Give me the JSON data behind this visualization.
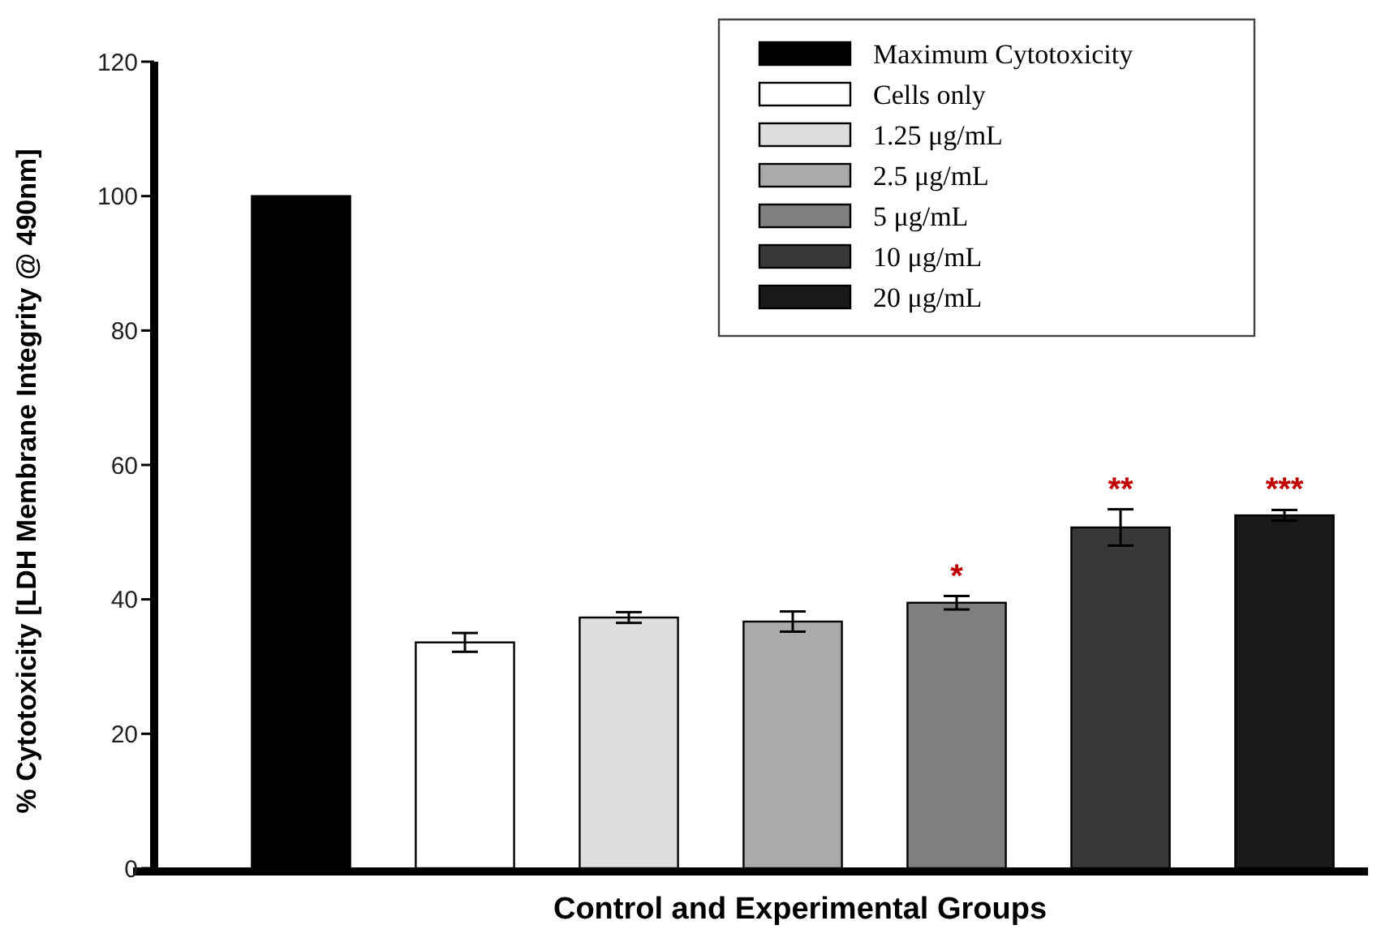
{
  "chart_data": {
    "type": "bar",
    "xlabel": "Control and Experimental Groups",
    "ylabel": "% Cytotoxicity [LDH Membrane Integrity @ 490nm]",
    "categories": [
      null,
      null,
      null,
      null,
      null,
      null,
      null
    ],
    "series": [
      {
        "name": "Maximum Cytotoxicity",
        "color": "#000000",
        "values": [
          100,
          null,
          null,
          null,
          null,
          null,
          null
        ]
      },
      {
        "name": "Cells only",
        "color": "#ffffff",
        "values": [
          null,
          33.6,
          null,
          null,
          null,
          null,
          null
        ],
        "errors": [
          null,
          1.4,
          null,
          null,
          null,
          null,
          null
        ]
      },
      {
        "name": "1.25 μg/mL",
        "color": "#dddddd",
        "values": [
          null,
          null,
          37.3,
          null,
          null,
          null,
          null
        ],
        "errors": [
          null,
          null,
          0.8,
          null,
          null,
          null,
          null
        ]
      },
      {
        "name": "2.5 μg/mL",
        "color": "#aaaaaa",
        "values": [
          null,
          null,
          null,
          36.7,
          null,
          null,
          null
        ],
        "errors": [
          null,
          null,
          null,
          1.5,
          null,
          null,
          null
        ]
      },
      {
        "name": "5 μg/mL",
        "color": "#7f7f7f",
        "values": [
          null,
          null,
          null,
          null,
          39.5,
          null,
          null
        ],
        "errors": [
          null,
          null,
          null,
          null,
          1.0,
          null,
          null
        ],
        "value_labels": [
          null,
          null,
          null,
          null,
          "*",
          null,
          null
        ]
      },
      {
        "name": "10 μg/mL",
        "color": "#383838",
        "values": [
          null,
          null,
          null,
          null,
          null,
          50.7,
          null
        ],
        "errors": [
          null,
          null,
          null,
          null,
          null,
          2.7,
          null
        ],
        "value_labels": [
          null,
          null,
          null,
          null,
          null,
          "**",
          null
        ]
      },
      {
        "name": "20 μg/mL",
        "color": "#1a1a1a",
        "values": [
          null,
          null,
          null,
          null,
          null,
          null,
          52.5
        ],
        "errors": [
          null,
          null,
          null,
          null,
          null,
          null,
          0.8
        ],
        "value_labels": [
          null,
          null,
          null,
          null,
          null,
          null,
          "***"
        ]
      }
    ],
    "ylim": [
      0,
      120
    ],
    "yticks": [
      0,
      20,
      40,
      60,
      80,
      100,
      120
    ],
    "legend": "top right",
    "grid": false
  }
}
